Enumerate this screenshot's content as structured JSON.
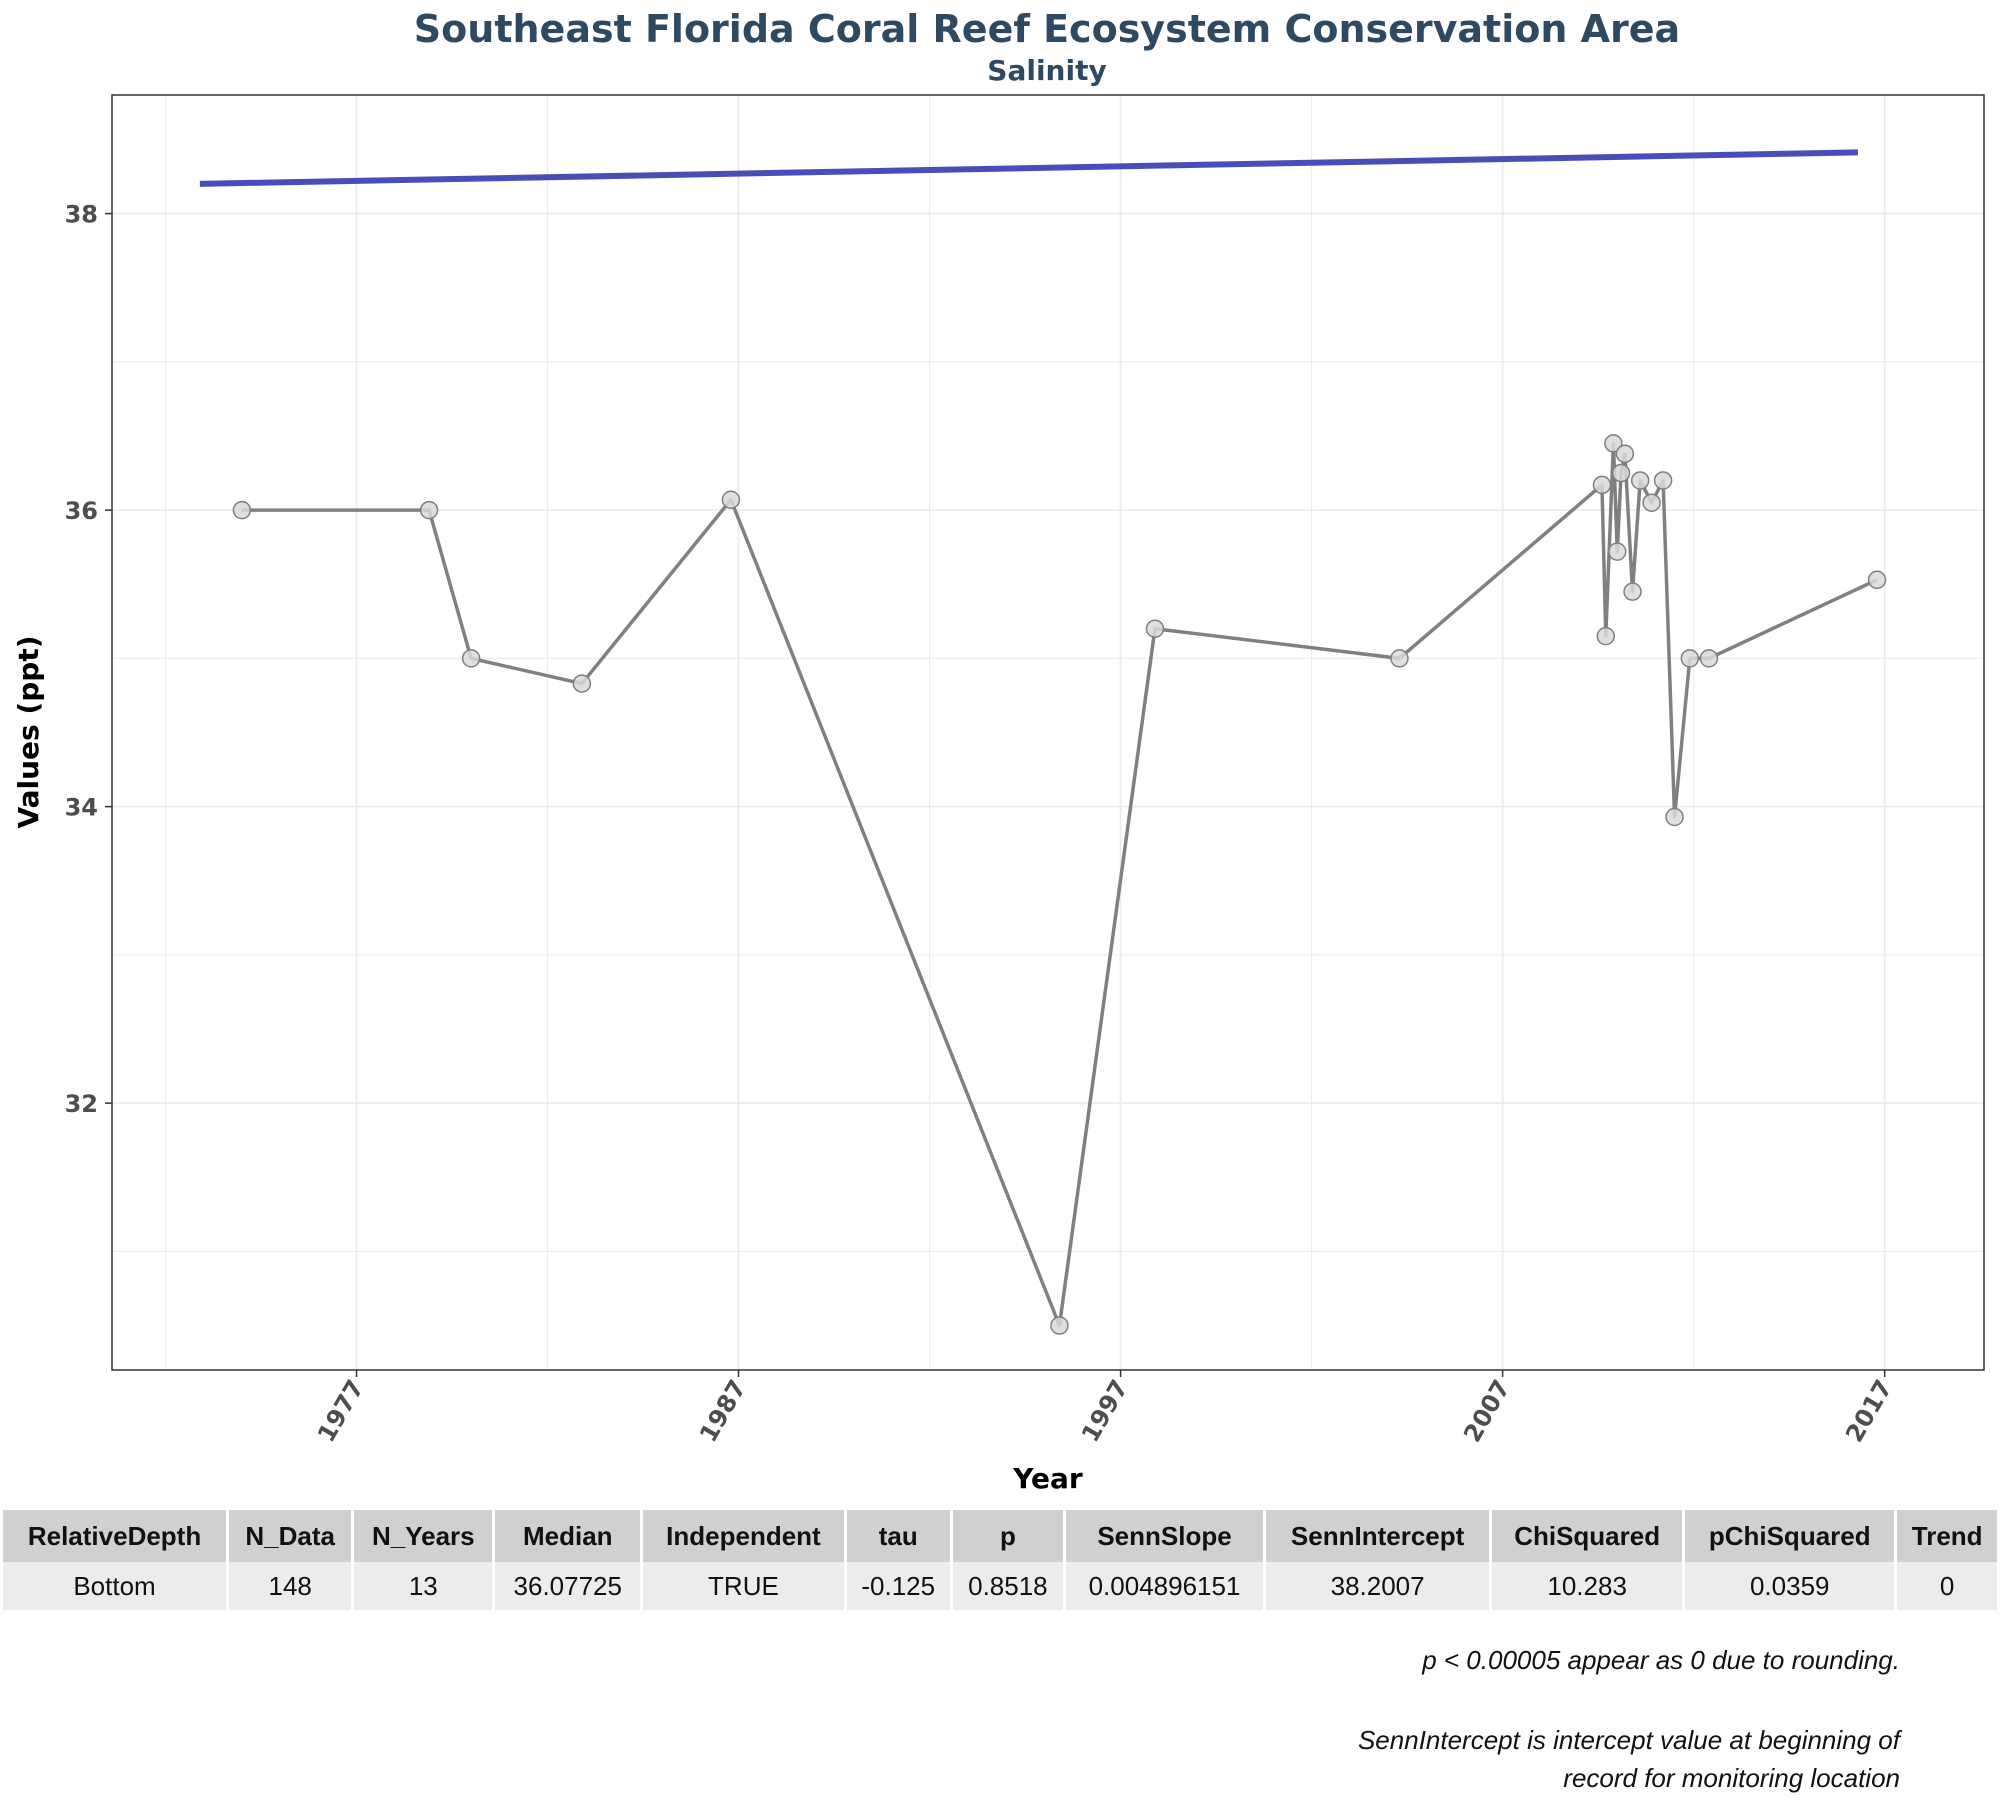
{
  "chart_data": {
    "type": "line",
    "title": "Southeast Florida Coral Reef Ecosystem Conservation Area",
    "subtitle": "Salinity",
    "xlabel": "Year",
    "ylabel": "Values (ppt)",
    "xlim": [
      1970.6,
      2019.6
    ],
    "ylim": [
      30.2,
      38.8
    ],
    "x_ticks": [
      1977,
      1987,
      1997,
      2007,
      2017
    ],
    "y_ticks": [
      32,
      34,
      36,
      38
    ],
    "grid": true,
    "legend": "none",
    "series": [
      {
        "type": "line-markers",
        "color": "#808080",
        "marker_fill": "#d9d9d9",
        "x": [
          1974.0,
          1978.9,
          1980.0,
          1982.9,
          1986.8,
          1995.4,
          1997.9,
          2004.3,
          2009.6,
          2009.7,
          2009.9,
          2010.0,
          2010.1,
          2010.2,
          2010.4,
          2010.6,
          2010.9,
          2011.2,
          2011.5,
          2011.9,
          2012.4,
          2016.8
        ],
        "values": [
          36.0,
          36.0,
          35.0,
          34.83,
          36.07,
          30.5,
          35.2,
          35.0,
          36.17,
          35.15,
          36.45,
          35.72,
          36.25,
          36.38,
          35.45,
          36.2,
          36.05,
          36.2,
          33.93,
          35.0,
          35.0,
          35.53
        ]
      },
      {
        "type": "trend",
        "color": "#4a4db8",
        "x": [
          1972.9,
          2016.3
        ],
        "values": [
          38.2007,
          38.4132
        ]
      }
    ]
  },
  "table": {
    "headers": [
      "RelativeDepth",
      "N_Data",
      "N_Years",
      "Median",
      "Independent",
      "tau",
      "p",
      "SennSlope",
      "SennIntercept",
      "ChiSquared",
      "pChiSquared",
      "Trend"
    ],
    "rows": [
      [
        "Bottom",
        "148",
        "13",
        "36.07725",
        "TRUE",
        "-0.125",
        "0.8518",
        "0.004896151",
        "38.2007",
        "10.283",
        "0.0359",
        "0"
      ]
    ]
  },
  "notes": {
    "rounding": "p < 0.00005 appear as 0 due to rounding.",
    "intercept_line1": "SennIntercept is intercept value at beginning of",
    "intercept_line2": "record for monitoring location"
  }
}
